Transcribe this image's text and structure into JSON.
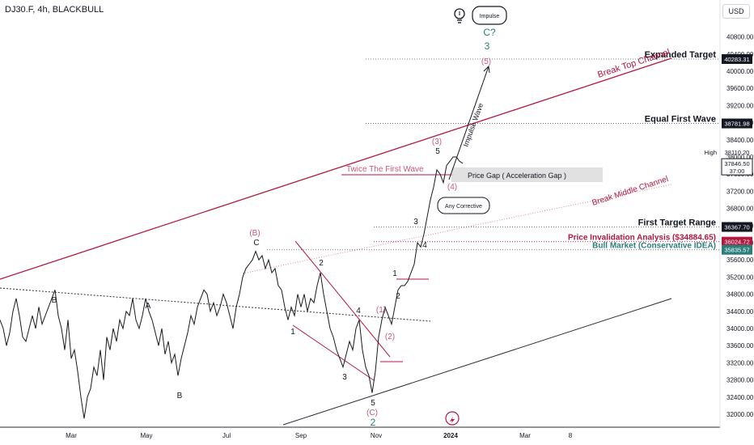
{
  "header": {
    "title": "DJ30.F, 4h, BLACKBULL",
    "currency": "USD"
  },
  "colors": {
    "price": "#1a1a1a",
    "channel_red": "#b5173f",
    "wave_pink": "#c8587a",
    "teal": "#2a7f7a",
    "axis_text": "#131722",
    "grid_dot": "#555555"
  },
  "chart_data": {
    "type": "line",
    "symbol": "DJ30.F",
    "timeframe": "4h",
    "x_ticks": [
      "Mar",
      "May",
      "Jul",
      "Sep",
      "Nov",
      "2024",
      "Mar",
      "8"
    ],
    "y_ticks": [
      32000,
      32400,
      32800,
      33200,
      33600,
      34000,
      34400,
      34800,
      35200,
      35600,
      36000,
      36400,
      36800,
      37200,
      37600,
      38000,
      38400,
      38800,
      39200,
      39600,
      40000,
      40400,
      40800
    ],
    "ylim": [
      31700,
      41600
    ],
    "series": [
      {
        "values": [
          [
            0,
            34200
          ],
          [
            4,
            34000
          ],
          [
            8,
            33600
          ],
          [
            12,
            33900
          ],
          [
            16,
            34400
          ],
          [
            20,
            34700
          ],
          [
            24,
            34300
          ],
          [
            28,
            33800
          ],
          [
            32,
            33700
          ],
          [
            36,
            34000
          ],
          [
            40,
            34300
          ],
          [
            44,
            34000
          ],
          [
            48,
            34500
          ],
          [
            52,
            34100
          ],
          [
            56,
            34300
          ],
          [
            60,
            34500
          ],
          [
            64,
            34700
          ],
          [
            68,
            34900
          ],
          [
            72,
            34300
          ],
          [
            76,
            34000
          ],
          [
            80,
            33500
          ],
          [
            84,
            34200
          ],
          [
            88,
            33300
          ],
          [
            92,
            33500
          ],
          [
            96,
            33000
          ],
          [
            100,
            32400
          ],
          [
            104,
            31900
          ],
          [
            108,
            32400
          ],
          [
            112,
            32600
          ],
          [
            116,
            33100
          ],
          [
            120,
            32900
          ],
          [
            124,
            33500
          ],
          [
            128,
            32800
          ],
          [
            132,
            33800
          ],
          [
            136,
            33500
          ],
          [
            140,
            34000
          ],
          [
            144,
            33700
          ],
          [
            148,
            34200
          ],
          [
            152,
            34000
          ],
          [
            156,
            34400
          ],
          [
            160,
            34300
          ],
          [
            164,
            34700
          ],
          [
            168,
            34200
          ],
          [
            172,
            34000
          ],
          [
            176,
            34300
          ],
          [
            180,
            34700
          ],
          [
            184,
            34400
          ],
          [
            188,
            34200
          ],
          [
            192,
            33900
          ],
          [
            196,
            33600
          ],
          [
            200,
            34000
          ],
          [
            204,
            33400
          ],
          [
            208,
            33700
          ],
          [
            212,
            33200
          ],
          [
            216,
            33400
          ],
          [
            220,
            32900
          ],
          [
            224,
            33300
          ],
          [
            228,
            33600
          ],
          [
            232,
            33900
          ],
          [
            236,
            34300
          ],
          [
            240,
            34100
          ],
          [
            244,
            34500
          ],
          [
            248,
            34700
          ],
          [
            252,
            34900
          ],
          [
            256,
            34800
          ],
          [
            260,
            34400
          ],
          [
            264,
            34600
          ],
          [
            268,
            34300
          ],
          [
            272,
            34500
          ],
          [
            276,
            34800
          ],
          [
            280,
            34600
          ],
          [
            284,
            34300
          ],
          [
            288,
            34000
          ],
          [
            292,
            34500
          ],
          [
            296,
            34800
          ],
          [
            300,
            35200
          ],
          [
            304,
            35400
          ],
          [
            308,
            35500
          ],
          [
            312,
            35600
          ],
          [
            316,
            35800
          ],
          [
            320,
            35600
          ],
          [
            324,
            35700
          ],
          [
            328,
            35400
          ],
          [
            332,
            35600
          ],
          [
            336,
            35300
          ],
          [
            340,
            35400
          ],
          [
            344,
            35000
          ],
          [
            348,
            34900
          ],
          [
            352,
            34500
          ],
          [
            356,
            34200
          ],
          [
            360,
            34500
          ],
          [
            364,
            34300
          ],
          [
            368,
            34800
          ],
          [
            372,
            34500
          ],
          [
            376,
            34800
          ],
          [
            380,
            34400
          ],
          [
            384,
            34700
          ],
          [
            388,
            34600
          ],
          [
            392,
            35000
          ],
          [
            396,
            35300
          ],
          [
            400,
            34800
          ],
          [
            404,
            34400
          ],
          [
            408,
            34000
          ],
          [
            412,
            33800
          ],
          [
            416,
            33500
          ],
          [
            420,
            33300
          ],
          [
            424,
            33100
          ],
          [
            428,
            33400
          ],
          [
            432,
            33700
          ],
          [
            436,
            33500
          ],
          [
            440,
            34000
          ],
          [
            444,
            34200
          ],
          [
            448,
            33500
          ],
          [
            452,
            33100
          ],
          [
            456,
            32900
          ],
          [
            460,
            32500
          ],
          [
            464,
            33000
          ],
          [
            468,
            33800
          ],
          [
            472,
            34200
          ],
          [
            476,
            34500
          ],
          [
            480,
            34300
          ],
          [
            484,
            34100
          ],
          [
            488,
            34500
          ],
          [
            492,
            34900
          ],
          [
            496,
            35000
          ],
          [
            500,
            35000
          ],
          [
            504,
            35100
          ],
          [
            508,
            35300
          ],
          [
            512,
            35500
          ],
          [
            516,
            36000
          ],
          [
            520,
            35900
          ],
          [
            524,
            36200
          ],
          [
            528,
            36600
          ],
          [
            532,
            37000
          ],
          [
            536,
            37300
          ],
          [
            540,
            37700
          ],
          [
            544,
            37600
          ],
          [
            548,
            37400
          ],
          [
            552,
            37800
          ],
          [
            556,
            37900
          ],
          [
            560,
            38000
          ],
          [
            564,
            38000
          ],
          [
            568,
            37900
          ],
          [
            572,
            37850
          ]
        ]
      }
    ],
    "horizontal_levels": [
      {
        "label": "Expanded Target",
        "value": 40283.31,
        "price_tag": "40283.31"
      },
      {
        "label": "Equal First Wave",
        "value": 38781.98,
        "price_tag": "38781.98"
      },
      {
        "label": "First Target Range",
        "value": 36367.7,
        "price_tag": "36367.70"
      },
      {
        "label": "Price Invalidation Analysis ($34884.65)",
        "value": 36024.72,
        "price_tag": "36024.72"
      },
      {
        "label": "Bull Market (Conservative IDEA)",
        "value": 35835.57,
        "price_tag": "35835.57"
      }
    ],
    "current_price": {
      "price_tag": "37846.50",
      "countdown": "37:00"
    },
    "high": {
      "label": "High",
      "value": "38110.20"
    },
    "annotations": {
      "channel_top": "Break Top Channel",
      "channel_middle": "Break Middle Channel",
      "twice_first_wave": "Twice The First Wave",
      "price_gap": "Price Gap ( Acceleration Gap )",
      "any_corrective": "Any Corrective",
      "impulse_wave": "Impulse Wave",
      "impulse_box": "Impulse"
    },
    "wave_labels": [
      "B",
      "A",
      "B",
      "C",
      "(B)",
      "2",
      "1",
      "3",
      "4",
      "5",
      "(C)",
      "2",
      "(1)",
      "(2)",
      "1",
      "2",
      "3",
      "4",
      "5",
      "(3)",
      "(4)",
      "(5)",
      "C?",
      "3"
    ]
  }
}
